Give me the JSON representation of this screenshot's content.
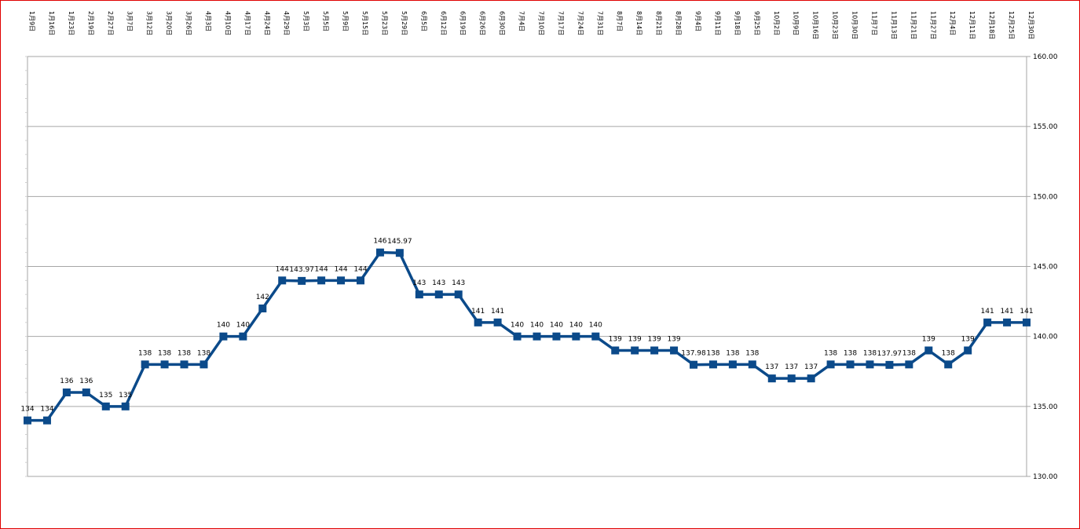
{
  "chart_data": {
    "type": "line",
    "title": "",
    "xlabel": "",
    "ylabel": "",
    "ylim": [
      130,
      160
    ],
    "yticks": [
      "130.00",
      "135.00",
      "140.00",
      "145.00",
      "150.00",
      "155.00",
      "160.00"
    ],
    "y_axis_side": "right",
    "x_axis_labels_position": "top",
    "grid": "horizontal",
    "legend": "none",
    "colors": {
      "line": "#0b4a8a",
      "marker": "#0b4a8a",
      "grid": "#a6a6a6",
      "frame": "#e00000"
    },
    "categories": [
      "1月9日",
      "1月16日",
      "1月23日",
      "2月19日",
      "2月27日",
      "3月7日",
      "3月12日",
      "3月20日",
      "3月26日",
      "4月3日",
      "4月10日",
      "4月17日",
      "4月24日",
      "4月29日",
      "5月3日",
      "5月5日",
      "5月9日",
      "5月15日",
      "5月23日",
      "5月29日",
      "6月5日",
      "6月12日",
      "6月19日",
      "6月26日",
      "6月30日",
      "7月4日",
      "7月10日",
      "7月17日",
      "7月24日",
      "7月31日",
      "8月7日",
      "8月14日",
      "8月21日",
      "8月28日",
      "9月4日",
      "9月11日",
      "9月18日",
      "9月25日",
      "10月2日",
      "10月9日",
      "10月16日",
      "10月23日",
      "10月30日",
      "11月7日",
      "11月13日",
      "11月21日",
      "11月27日",
      "12月4日",
      "12月11日",
      "12月18日",
      "12月25日",
      "12月30日"
    ],
    "series": [
      {
        "values": [
          134,
          134,
          136,
          136,
          135,
          135,
          138,
          138,
          138,
          138,
          140,
          140,
          142,
          144,
          143.97,
          144,
          144,
          144,
          146,
          145.97,
          143,
          143,
          143,
          141,
          141,
          140,
          140,
          140,
          140,
          140,
          139,
          139,
          139,
          139,
          137.98,
          138,
          138,
          138,
          137,
          137,
          137,
          138,
          138,
          138,
          137.97,
          138,
          139,
          138,
          139,
          141,
          141,
          141
        ],
        "data_labels": [
          "134",
          "134",
          "136",
          "136",
          "135",
          "135",
          "138",
          "138",
          "138",
          "138",
          "140",
          "140",
          "142",
          "144",
          "143.97",
          "144",
          "144",
          "144",
          "146",
          "145.97",
          "143",
          "143",
          "143",
          "141",
          "141",
          "140",
          "140",
          "140",
          "140",
          "140",
          "139",
          "139",
          "139",
          "139",
          "137.98",
          "138",
          "138",
          "138",
          "137",
          "137",
          "137",
          "138",
          "138",
          "138",
          "137.97",
          "138",
          "139",
          "138",
          "139",
          "141",
          "141",
          "141"
        ]
      }
    ]
  }
}
